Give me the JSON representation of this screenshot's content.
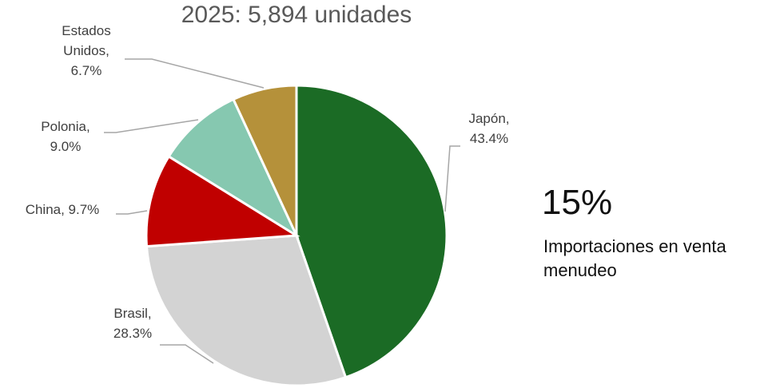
{
  "chart_data": {
    "type": "pie",
    "title": "2025: 5,894 unidades",
    "values": [
      43.4,
      28.3,
      9.7,
      9.0,
      6.7
    ],
    "value_labels": [
      "Japón, 43.4%",
      "Brasil, 28.3%",
      "China, 9.7%",
      "Polonia, 9.0%",
      "Estados Unidos, 6.7%"
    ],
    "colors": [
      "#1b6b25",
      "#d3d3d3",
      "#c00000",
      "#86c8b0",
      "#b5913a"
    ],
    "annotation": {
      "headline": "15%",
      "text": "Importaciones en venta menudeo"
    }
  }
}
